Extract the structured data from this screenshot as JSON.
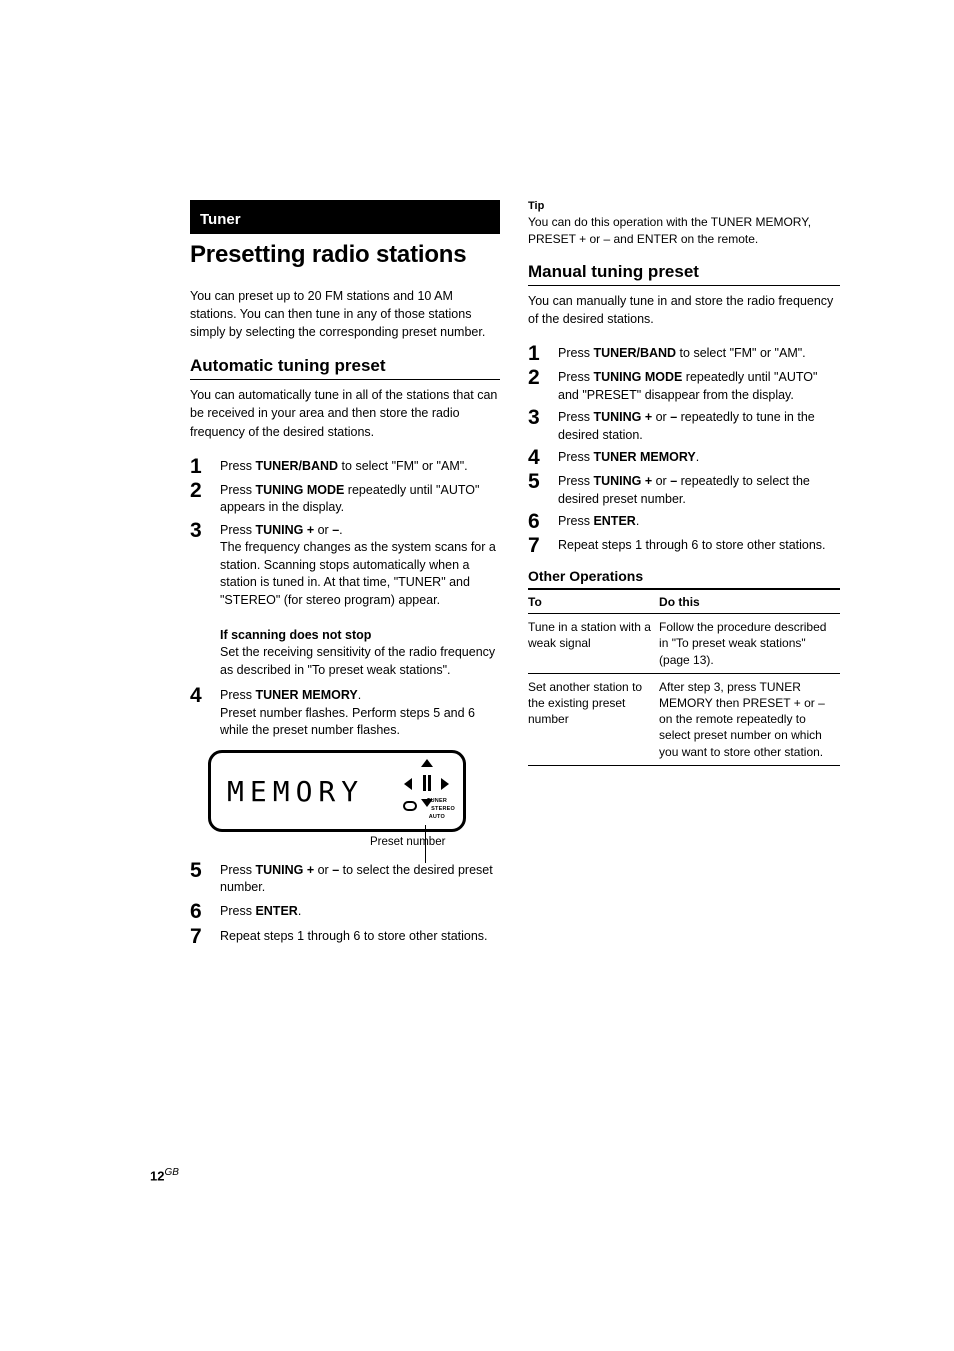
{
  "page_number": "12",
  "page_number_suffix": "GB",
  "left": {
    "section_tab": "Tuner",
    "title": "Presetting radio stations",
    "intro": "You can preset up to 20 FM stations and 10 AM stations. You can then tune in any of those stations simply by selecting the corresponding preset number.",
    "auto_heading": "Automatic tuning preset",
    "auto_intro": "You can automatically tune in all of the stations that can be received in your area and then store the radio frequency of the desired stations.",
    "steps_1_3": [
      {
        "n": "1",
        "body": "Press <b>TUNER/BAND</b> to select \"FM\" or \"AM\"."
      },
      {
        "n": "2",
        "body": "Press <b>TUNING MODE</b> repeatedly until \"AUTO\" appears in the display."
      },
      {
        "n": "3",
        "body": "Press <b>TUNING +</b> or <b>–</b>.<br>The frequency changes as the system scans for a station. Scanning stops automatically when a station is tuned in. At that time, \"TUNER\" and \"STEREO\" (for stereo program) appear.<br><br><b>If scanning does not stop</b><br>Set the receiving sensitivity of the radio frequency as described in \"To preset weak stations\"."
      }
    ],
    "step4_body": "Press <b>TUNER MEMORY</b>.<br>Preset number flashes. Perform steps 5 and 6 while the preset number flashes.",
    "lcd_text": "MEMORY",
    "lcd_labels": {
      "tuner": "TUNER",
      "stereo": "STEREO",
      "auto": "AUTO"
    },
    "callout": "Preset number",
    "step5_body": "Press <b>TUNING +</b> or <b>–</b> to select the desired preset number.",
    "step6_body": "Press <b>ENTER</b>.",
    "step7_body": "Repeat steps 1 through 6 to store other stations."
  },
  "right": {
    "tip_label": "Tip",
    "tip_text": "You can do this operation with the TUNER MEMORY, PRESET + or – and ENTER on the remote.",
    "manual_heading": "Manual tuning preset",
    "manual_intro": "You can manually tune in and store the radio frequency of the desired stations.",
    "steps": [
      {
        "n": "1",
        "body": "Press <b>TUNER/BAND</b> to select \"FM\" or \"AM\"."
      },
      {
        "n": "2",
        "body": "Press <b>TUNING MODE</b> repeatedly until \"AUTO\" and \"PRESET\" disappear from the display."
      },
      {
        "n": "3",
        "body": "Press <b>TUNING +</b> or <b>–</b> repeatedly to tune in the desired station."
      },
      {
        "n": "4",
        "body": "Press <b>TUNER MEMORY</b>."
      },
      {
        "n": "5",
        "body": "Press <b>TUNING +</b> or <b>–</b> repeatedly to select the desired preset number."
      },
      {
        "n": "6",
        "body": "Press <b>ENTER</b>."
      },
      {
        "n": "7",
        "body": "Repeat steps 1 through 6 to store other stations."
      }
    ],
    "other_ops_heading": "Other Operations",
    "table_head": {
      "to": "To",
      "do": "Do this"
    },
    "table_rows": [
      {
        "to": "Tune in a station with a weak signal",
        "do": "Follow the procedure described in \"To preset weak stations\" (page 13)."
      },
      {
        "to": "Set another station to the existing preset number",
        "do": "After step 3, press TUNER MEMORY then PRESET + or – on the remote repeatedly to select preset number on which you want to store other station."
      }
    ]
  }
}
